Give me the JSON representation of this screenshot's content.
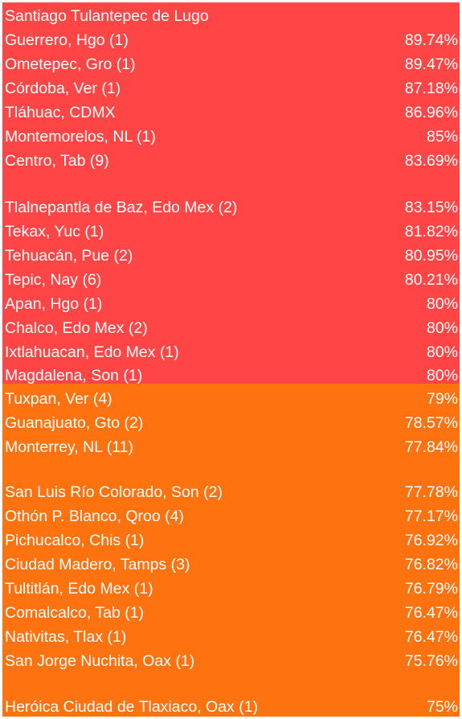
{
  "header": {
    "title": "Santiago Tulantepec de Lugo"
  },
  "colors": {
    "high_band": "#ff4545",
    "mid_band": "#ff7210",
    "text": "#ffffff"
  },
  "rows": [
    {
      "name": "Guerrero, Hgo (1)",
      "value": "89.74%"
    },
    {
      "name": "Ometepec, Gro (1)",
      "value": "89.47%"
    },
    {
      "name": "Córdoba, Ver (1)",
      "value": "87.18%"
    },
    {
      "name": "Tláhuac, CDMX",
      "value": "86.96%"
    },
    {
      "name": "Montemorelos, NL (1)",
      "value": "85%"
    },
    {
      "name": "Centro, Tab (9)",
      "value": "83.69%"
    },
    {
      "name": "Tlalnepantla de Baz, Edo Mex (2)",
      "value": "83.15%"
    },
    {
      "name": "Tekax, Yuc (1)",
      "value": "81.82%"
    },
    {
      "name": "Tehuacán, Pue (2)",
      "value": "80.95%"
    },
    {
      "name": "Tepic, Nay (6)",
      "value": "80.21%"
    },
    {
      "name": "Apan, Hgo (1)",
      "value": "80%"
    },
    {
      "name": "Chalco, Edo Mex (2)",
      "value": "80%"
    },
    {
      "name": "Ixtlahuacan, Edo Mex (1)",
      "value": "80%"
    },
    {
      "name": "Magdalena, Son (1)",
      "value": "80%"
    },
    {
      "name": "Tuxpan, Ver (4)",
      "value": "79%"
    },
    {
      "name": "Guanajuato, Gto (2)",
      "value": "78.57%"
    },
    {
      "name": "Monterrey, NL (11)",
      "value": "77.84%"
    },
    {
      "name": "San Luis Río Colorado, Son (2)",
      "value": "77.78%"
    },
    {
      "name": "Othón P. Blanco, Qroo (4)",
      "value": "77.17%"
    },
    {
      "name": "Pichucalco, Chis (1)",
      "value": "76.92%"
    },
    {
      "name": "Ciudad Madero, Tamps (3)",
      "value": "76.82%"
    },
    {
      "name": "Tultitlán, Edo Mex (1)",
      "value": "76.79%"
    },
    {
      "name": "Comalcalco, Tab (1)",
      "value": "76.47%"
    },
    {
      "name": "Nativitas, Tlax (1)",
      "value": "76.47%"
    },
    {
      "name": "San Jorge Nuchita, Oax (1)",
      "value": "75.76%"
    },
    {
      "name": "Heróica Ciudad de Tlaxiaco, Oax (1)",
      "value": "75%"
    }
  ]
}
